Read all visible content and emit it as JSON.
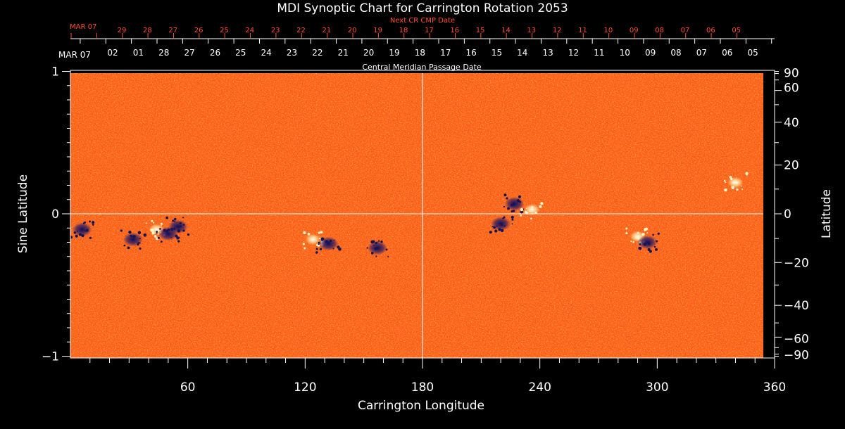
{
  "chart_data": {
    "type": "heatmap",
    "title": "MDI Synoptic Chart for Carrington Rotation 2053",
    "xlabel": "Carrington Longitude",
    "ylabel_left": "Sine Latitude",
    "ylabel_right": "Latitude",
    "xlim": [
      0,
      360
    ],
    "ylim": [
      -1,
      1
    ],
    "x_ticks": [
      60,
      120,
      180,
      240,
      300,
      360
    ],
    "y_ticks_left": [
      1,
      0,
      -1
    ],
    "y_tick_labels_left": [
      "1",
      "0",
      "−1"
    ],
    "latitude_ticks": [
      90,
      60,
      40,
      20,
      0,
      -20,
      -40,
      -60,
      -90
    ],
    "latitude_tick_labels": [
      "90",
      "60",
      "40",
      "20",
      "0",
      "−20",
      "−40",
      "−60",
      "−90"
    ],
    "cmp_axis_label": "Central Meridian Passage Date",
    "cmp_start_label": "MAR 07",
    "cmp_dates": [
      "02",
      "01",
      "28",
      "27",
      "26",
      "25",
      "24",
      "23",
      "22",
      "21",
      "20",
      "19",
      "18",
      "17",
      "16",
      "15",
      "14",
      "13",
      "12",
      "11",
      "10",
      "09",
      "08",
      "07",
      "06",
      "05"
    ],
    "next_cr_label": "Next CR CMP Date",
    "next_cr_start_label": "MAR 07",
    "next_cr_dates": [
      "29",
      "28",
      "27",
      "26",
      "25",
      "24",
      "23",
      "22",
      "21",
      "20",
      "19",
      "18",
      "17",
      "16",
      "15",
      "14",
      "13",
      "12",
      "11",
      "10",
      "09",
      "08",
      "07",
      "06",
      "05"
    ],
    "grid": "crosshair at 180° longitude and equator",
    "colors": {
      "background_field": "#ff5a14",
      "positive_polarity": "#ffffff",
      "negative_polarity": "#1a1a66",
      "next_cr_axis": "#ff5030"
    },
    "active_regions": [
      {
        "lon": 6,
        "sinlat": -0.11,
        "polarity": "negative"
      },
      {
        "lon": 32,
        "sinlat": -0.18,
        "polarity": "negative"
      },
      {
        "lon": 44,
        "sinlat": -0.11,
        "polarity": "positive"
      },
      {
        "lon": 50,
        "sinlat": -0.14,
        "polarity": "negative"
      },
      {
        "lon": 55,
        "sinlat": -0.09,
        "polarity": "negative"
      },
      {
        "lon": 124,
        "sinlat": -0.18,
        "polarity": "positive"
      },
      {
        "lon": 132,
        "sinlat": -0.21,
        "polarity": "negative"
      },
      {
        "lon": 157,
        "sinlat": -0.24,
        "polarity": "negative"
      },
      {
        "lon": 227,
        "sinlat": 0.07,
        "polarity": "negative"
      },
      {
        "lon": 220,
        "sinlat": -0.07,
        "polarity": "negative"
      },
      {
        "lon": 236,
        "sinlat": 0.03,
        "polarity": "positive"
      },
      {
        "lon": 290,
        "sinlat": -0.16,
        "polarity": "positive"
      },
      {
        "lon": 295,
        "sinlat": -0.2,
        "polarity": "negative"
      },
      {
        "lon": 340,
        "sinlat": 0.22,
        "polarity": "positive"
      }
    ]
  }
}
